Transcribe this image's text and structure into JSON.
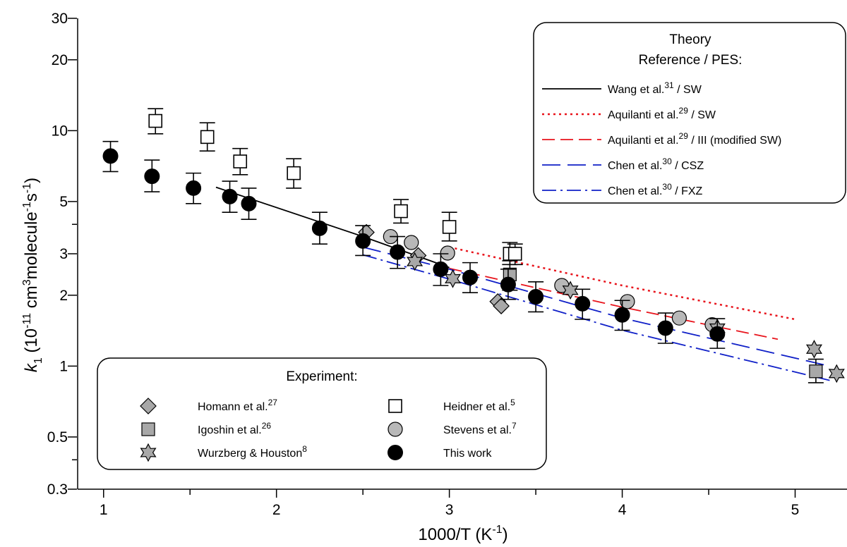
{
  "chart_data": {
    "type": "scatter",
    "xlabel": "1000/T (K",
    "xlabel_sup": "-1",
    "xlabel_end": ")",
    "ylabel_parts": [
      "k",
      "1",
      " (10",
      "-11",
      " cm",
      "3",
      "molecule",
      "-1",
      "s",
      "-1",
      ")"
    ],
    "xlim": [
      0.85,
      5.3
    ],
    "ylim": [
      0.3,
      30
    ],
    "y_scale": "log",
    "x_ticks": [
      "1",
      "2",
      "3",
      "4",
      "5"
    ],
    "y_ticks": [
      "0.3",
      "0.5",
      "1",
      "2",
      "3",
      "5",
      "10",
      "20",
      "30"
    ],
    "experiment_legend": {
      "title": "Experiment:",
      "entries": [
        {
          "name": "Homann et al.",
          "sup": "27",
          "marker": "diamond"
        },
        {
          "name": "Igoshin et al.",
          "sup": "26",
          "marker": "square"
        },
        {
          "name": "Wurzberg & Houston",
          "sup": "8",
          "marker": "star"
        },
        {
          "name": "Heidner et al.",
          "sup": "5",
          "marker": "open-square"
        },
        {
          "name": "Stevens et al.",
          "sup": "7",
          "marker": "gray-circle"
        },
        {
          "name": "This work",
          "sup": "",
          "marker": "black-circle"
        }
      ]
    },
    "theory_legend": {
      "title_line1": "Theory",
      "title_line2": "Reference / PES:",
      "entries": [
        {
          "name": "Wang et al.",
          "sup": "31",
          "suffix": " / SW",
          "color": "#000000",
          "dash": "none"
        },
        {
          "name": "Aquilanti et al.",
          "sup": "29",
          "suffix": " / SW",
          "color": "#e8141c",
          "dash": "3,5"
        },
        {
          "name": "Aquilanti et al.",
          "sup": "29",
          "suffix": " / III (modified SW)",
          "color": "#e8141c",
          "dash": "18,8"
        },
        {
          "name": "Chen et al.",
          "sup": "30",
          "suffix": " / CSZ",
          "color": "#1020c8",
          "dash": "26,10"
        },
        {
          "name": "Chen et al.",
          "sup": "30",
          "suffix": " / FXZ",
          "color": "#1020c8",
          "dash": "20,6,3,6"
        }
      ]
    },
    "theory_lines": [
      {
        "name": "Wang et al. / SW",
        "x": [
          1.65,
          2.5,
          3.0
        ],
        "y": [
          5.75,
          3.55,
          2.62
        ]
      },
      {
        "name": "Aquilanti et al. / SW",
        "x": [
          3.0,
          4.0,
          5.0
        ],
        "y": [
          3.2,
          2.2,
          1.58
        ]
      },
      {
        "name": "Aquilanti et al. / III (modified SW)",
        "x": [
          3.0,
          4.0,
          4.9
        ],
        "y": [
          2.6,
          1.78,
          1.3
        ]
      },
      {
        "name": "Chen et al. / CSZ",
        "x": [
          2.5,
          3.0,
          4.0,
          5.2
        ],
        "y": [
          3.2,
          2.58,
          1.6,
          1.0
        ]
      },
      {
        "name": "Chen et al. / FXZ",
        "x": [
          2.5,
          3.0,
          4.0,
          5.2
        ],
        "y": [
          2.97,
          2.34,
          1.42,
          0.87
        ]
      }
    ],
    "series": [
      {
        "name": "This work",
        "marker": "black-circle",
        "points": [
          {
            "x": 1.04,
            "y": 7.8,
            "lo": 6.7,
            "hi": 9.0
          },
          {
            "x": 1.28,
            "y": 6.4,
            "lo": 5.5,
            "hi": 7.5
          },
          {
            "x": 1.52,
            "y": 5.7,
            "lo": 4.9,
            "hi": 6.6
          },
          {
            "x": 1.73,
            "y": 5.25,
            "lo": 4.5,
            "hi": 6.1
          },
          {
            "x": 1.84,
            "y": 4.9,
            "lo": 4.2,
            "hi": 5.7
          },
          {
            "x": 2.25,
            "y": 3.85,
            "lo": 3.3,
            "hi": 4.5
          },
          {
            "x": 2.5,
            "y": 3.4,
            "lo": 2.95,
            "hi": 3.95
          },
          {
            "x": 2.7,
            "y": 3.05,
            "lo": 2.6,
            "hi": 3.55
          },
          {
            "x": 2.95,
            "y": 2.58,
            "lo": 2.2,
            "hi": 3.0
          },
          {
            "x": 3.12,
            "y": 2.38,
            "lo": 2.05,
            "hi": 2.75
          },
          {
            "x": 3.34,
            "y": 2.22,
            "lo": 1.92,
            "hi": 2.58
          },
          {
            "x": 3.5,
            "y": 1.97,
            "lo": 1.7,
            "hi": 2.28
          },
          {
            "x": 3.77,
            "y": 1.84,
            "lo": 1.58,
            "hi": 2.12
          },
          {
            "x": 4.0,
            "y": 1.65,
            "lo": 1.42,
            "hi": 1.9
          },
          {
            "x": 4.25,
            "y": 1.45,
            "lo": 1.25,
            "hi": 1.68
          },
          {
            "x": 4.55,
            "y": 1.37,
            "lo": 1.19,
            "hi": 1.59
          }
        ]
      },
      {
        "name": "Heidner et al.",
        "marker": "open-square",
        "points": [
          {
            "x": 1.3,
            "y": 11.0,
            "lo": 9.7,
            "hi": 12.4
          },
          {
            "x": 1.6,
            "y": 9.4,
            "lo": 8.2,
            "hi": 10.8
          },
          {
            "x": 1.79,
            "y": 7.4,
            "lo": 6.5,
            "hi": 8.4
          },
          {
            "x": 2.1,
            "y": 6.6,
            "lo": 5.7,
            "hi": 7.6
          },
          {
            "x": 2.72,
            "y": 4.55,
            "lo": 4.05,
            "hi": 5.1
          },
          {
            "x": 3.0,
            "y": 3.9,
            "lo": 3.4,
            "hi": 4.5
          },
          {
            "x": 3.35,
            "y": 3.0,
            "lo": 2.7,
            "hi": 3.35
          },
          {
            "x": 3.38,
            "y": 3.0,
            "lo": 2.7,
            "hi": 3.3
          }
        ]
      },
      {
        "name": "Stevens et al.",
        "marker": "gray-circle",
        "points": [
          {
            "x": 2.66,
            "y": 3.55
          },
          {
            "x": 2.78,
            "y": 3.35
          },
          {
            "x": 2.99,
            "y": 3.02
          },
          {
            "x": 3.65,
            "y": 2.2
          },
          {
            "x": 4.03,
            "y": 1.88
          },
          {
            "x": 4.33,
            "y": 1.6
          },
          {
            "x": 4.52,
            "y": 1.5
          }
        ]
      },
      {
        "name": "Homann et al.",
        "marker": "diamond",
        "points": [
          {
            "x": 2.52,
            "y": 3.7
          },
          {
            "x": 2.82,
            "y": 2.95
          },
          {
            "x": 3.28,
            "y": 1.88
          },
          {
            "x": 3.3,
            "y": 1.8
          }
        ]
      },
      {
        "name": "Igoshin et al.",
        "marker": "square",
        "points": [
          {
            "x": 3.35,
            "y": 2.45,
            "lo": 2.1,
            "hi": 2.8
          },
          {
            "x": 5.12,
            "y": 0.95,
            "lo": 0.85,
            "hi": 1.07
          }
        ]
      },
      {
        "name": "Wurzberg & Houston",
        "marker": "star",
        "points": [
          {
            "x": 2.8,
            "y": 2.78
          },
          {
            "x": 3.02,
            "y": 2.35
          },
          {
            "x": 3.7,
            "y": 2.1
          },
          {
            "x": 4.55,
            "y": 1.45
          },
          {
            "x": 5.11,
            "y": 1.18
          },
          {
            "x": 5.24,
            "y": 0.93
          }
        ]
      }
    ]
  }
}
